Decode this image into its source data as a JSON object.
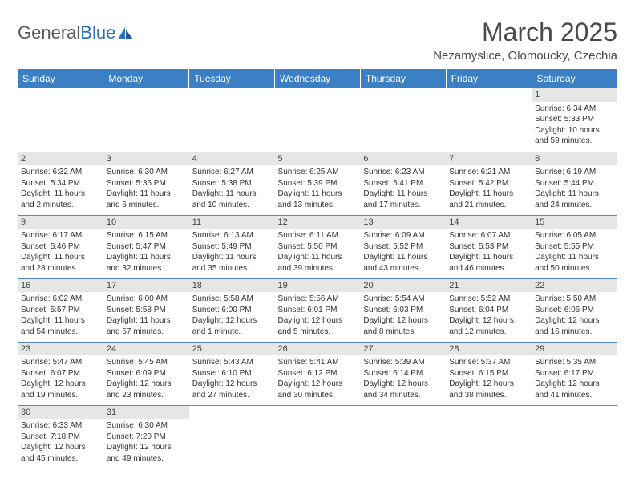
{
  "logo": {
    "text1": "General",
    "text2": "Blue"
  },
  "title": "March 2025",
  "location": "Nezamyslice, Olomoucky, Czechia",
  "colors": {
    "header_bg": "#3b7fc4",
    "header_text": "#ffffff",
    "divider": "#4a8ac9",
    "daynum_bg": "#e6e6e6",
    "logo_gray": "#5a5a5a",
    "logo_blue": "#2d6eb8"
  },
  "weekdays": [
    "Sunday",
    "Monday",
    "Tuesday",
    "Wednesday",
    "Thursday",
    "Friday",
    "Saturday"
  ],
  "weeks": [
    [
      {
        "day": "",
        "sunrise": "",
        "sunset": "",
        "daylight": ""
      },
      {
        "day": "",
        "sunrise": "",
        "sunset": "",
        "daylight": ""
      },
      {
        "day": "",
        "sunrise": "",
        "sunset": "",
        "daylight": ""
      },
      {
        "day": "",
        "sunrise": "",
        "sunset": "",
        "daylight": ""
      },
      {
        "day": "",
        "sunrise": "",
        "sunset": "",
        "daylight": ""
      },
      {
        "day": "",
        "sunrise": "",
        "sunset": "",
        "daylight": ""
      },
      {
        "day": "1",
        "sunrise": "Sunrise: 6:34 AM",
        "sunset": "Sunset: 5:33 PM",
        "daylight": "Daylight: 10 hours and 59 minutes."
      }
    ],
    [
      {
        "day": "2",
        "sunrise": "Sunrise: 6:32 AM",
        "sunset": "Sunset: 5:34 PM",
        "daylight": "Daylight: 11 hours and 2 minutes."
      },
      {
        "day": "3",
        "sunrise": "Sunrise: 6:30 AM",
        "sunset": "Sunset: 5:36 PM",
        "daylight": "Daylight: 11 hours and 6 minutes."
      },
      {
        "day": "4",
        "sunrise": "Sunrise: 6:27 AM",
        "sunset": "Sunset: 5:38 PM",
        "daylight": "Daylight: 11 hours and 10 minutes."
      },
      {
        "day": "5",
        "sunrise": "Sunrise: 6:25 AM",
        "sunset": "Sunset: 5:39 PM",
        "daylight": "Daylight: 11 hours and 13 minutes."
      },
      {
        "day": "6",
        "sunrise": "Sunrise: 6:23 AM",
        "sunset": "Sunset: 5:41 PM",
        "daylight": "Daylight: 11 hours and 17 minutes."
      },
      {
        "day": "7",
        "sunrise": "Sunrise: 6:21 AM",
        "sunset": "Sunset: 5:42 PM",
        "daylight": "Daylight: 11 hours and 21 minutes."
      },
      {
        "day": "8",
        "sunrise": "Sunrise: 6:19 AM",
        "sunset": "Sunset: 5:44 PM",
        "daylight": "Daylight: 11 hours and 24 minutes."
      }
    ],
    [
      {
        "day": "9",
        "sunrise": "Sunrise: 6:17 AM",
        "sunset": "Sunset: 5:46 PM",
        "daylight": "Daylight: 11 hours and 28 minutes."
      },
      {
        "day": "10",
        "sunrise": "Sunrise: 6:15 AM",
        "sunset": "Sunset: 5:47 PM",
        "daylight": "Daylight: 11 hours and 32 minutes."
      },
      {
        "day": "11",
        "sunrise": "Sunrise: 6:13 AM",
        "sunset": "Sunset: 5:49 PM",
        "daylight": "Daylight: 11 hours and 35 minutes."
      },
      {
        "day": "12",
        "sunrise": "Sunrise: 6:11 AM",
        "sunset": "Sunset: 5:50 PM",
        "daylight": "Daylight: 11 hours and 39 minutes."
      },
      {
        "day": "13",
        "sunrise": "Sunrise: 6:09 AM",
        "sunset": "Sunset: 5:52 PM",
        "daylight": "Daylight: 11 hours and 43 minutes."
      },
      {
        "day": "14",
        "sunrise": "Sunrise: 6:07 AM",
        "sunset": "Sunset: 5:53 PM",
        "daylight": "Daylight: 11 hours and 46 minutes."
      },
      {
        "day": "15",
        "sunrise": "Sunrise: 6:05 AM",
        "sunset": "Sunset: 5:55 PM",
        "daylight": "Daylight: 11 hours and 50 minutes."
      }
    ],
    [
      {
        "day": "16",
        "sunrise": "Sunrise: 6:02 AM",
        "sunset": "Sunset: 5:57 PM",
        "daylight": "Daylight: 11 hours and 54 minutes."
      },
      {
        "day": "17",
        "sunrise": "Sunrise: 6:00 AM",
        "sunset": "Sunset: 5:58 PM",
        "daylight": "Daylight: 11 hours and 57 minutes."
      },
      {
        "day": "18",
        "sunrise": "Sunrise: 5:58 AM",
        "sunset": "Sunset: 6:00 PM",
        "daylight": "Daylight: 12 hours and 1 minute."
      },
      {
        "day": "19",
        "sunrise": "Sunrise: 5:56 AM",
        "sunset": "Sunset: 6:01 PM",
        "daylight": "Daylight: 12 hours and 5 minutes."
      },
      {
        "day": "20",
        "sunrise": "Sunrise: 5:54 AM",
        "sunset": "Sunset: 6:03 PM",
        "daylight": "Daylight: 12 hours and 8 minutes."
      },
      {
        "day": "21",
        "sunrise": "Sunrise: 5:52 AM",
        "sunset": "Sunset: 6:04 PM",
        "daylight": "Daylight: 12 hours and 12 minutes."
      },
      {
        "day": "22",
        "sunrise": "Sunrise: 5:50 AM",
        "sunset": "Sunset: 6:06 PM",
        "daylight": "Daylight: 12 hours and 16 minutes."
      }
    ],
    [
      {
        "day": "23",
        "sunrise": "Sunrise: 5:47 AM",
        "sunset": "Sunset: 6:07 PM",
        "daylight": "Daylight: 12 hours and 19 minutes."
      },
      {
        "day": "24",
        "sunrise": "Sunrise: 5:45 AM",
        "sunset": "Sunset: 6:09 PM",
        "daylight": "Daylight: 12 hours and 23 minutes."
      },
      {
        "day": "25",
        "sunrise": "Sunrise: 5:43 AM",
        "sunset": "Sunset: 6:10 PM",
        "daylight": "Daylight: 12 hours and 27 minutes."
      },
      {
        "day": "26",
        "sunrise": "Sunrise: 5:41 AM",
        "sunset": "Sunset: 6:12 PM",
        "daylight": "Daylight: 12 hours and 30 minutes."
      },
      {
        "day": "27",
        "sunrise": "Sunrise: 5:39 AM",
        "sunset": "Sunset: 6:14 PM",
        "daylight": "Daylight: 12 hours and 34 minutes."
      },
      {
        "day": "28",
        "sunrise": "Sunrise: 5:37 AM",
        "sunset": "Sunset: 6:15 PM",
        "daylight": "Daylight: 12 hours and 38 minutes."
      },
      {
        "day": "29",
        "sunrise": "Sunrise: 5:35 AM",
        "sunset": "Sunset: 6:17 PM",
        "daylight": "Daylight: 12 hours and 41 minutes."
      }
    ],
    [
      {
        "day": "30",
        "sunrise": "Sunrise: 6:33 AM",
        "sunset": "Sunset: 7:18 PM",
        "daylight": "Daylight: 12 hours and 45 minutes."
      },
      {
        "day": "31",
        "sunrise": "Sunrise: 6:30 AM",
        "sunset": "Sunset: 7:20 PM",
        "daylight": "Daylight: 12 hours and 49 minutes."
      },
      {
        "day": "",
        "sunrise": "",
        "sunset": "",
        "daylight": ""
      },
      {
        "day": "",
        "sunrise": "",
        "sunset": "",
        "daylight": ""
      },
      {
        "day": "",
        "sunrise": "",
        "sunset": "",
        "daylight": ""
      },
      {
        "day": "",
        "sunrise": "",
        "sunset": "",
        "daylight": ""
      },
      {
        "day": "",
        "sunrise": "",
        "sunset": "",
        "daylight": ""
      }
    ]
  ]
}
